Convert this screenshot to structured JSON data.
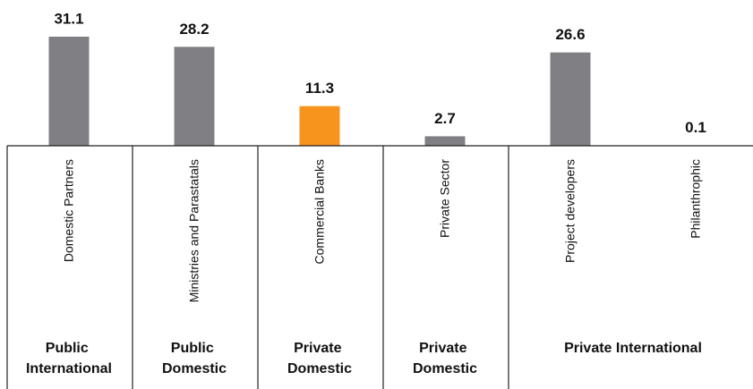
{
  "chart_data": {
    "type": "bar",
    "categories": [
      "Domestic Partners",
      "Ministries and Parastatals",
      "Commercial Banks",
      "Private Sector",
      "Project developers",
      "Philanthrophic"
    ],
    "values": [
      31.1,
      28.2,
      11.3,
      2.7,
      26.6,
      0.1
    ],
    "colors": [
      "#808084",
      "#808084",
      "#f7941d",
      "#808084",
      "#808084",
      "#808084"
    ],
    "groups": [
      {
        "name": "Public International",
        "categories": [
          "Domestic Partners"
        ]
      },
      {
        "name": "Public Domestic",
        "categories": [
          "Ministries and Parastatals"
        ]
      },
      {
        "name": "Private Domestic",
        "categories": [
          "Commercial Banks"
        ]
      },
      {
        "name": "Private Domestic",
        "categories": [
          "Private Sector"
        ]
      },
      {
        "name": "Private International",
        "categories": [
          "Project developers",
          "Philanthrophic"
        ]
      }
    ]
  }
}
